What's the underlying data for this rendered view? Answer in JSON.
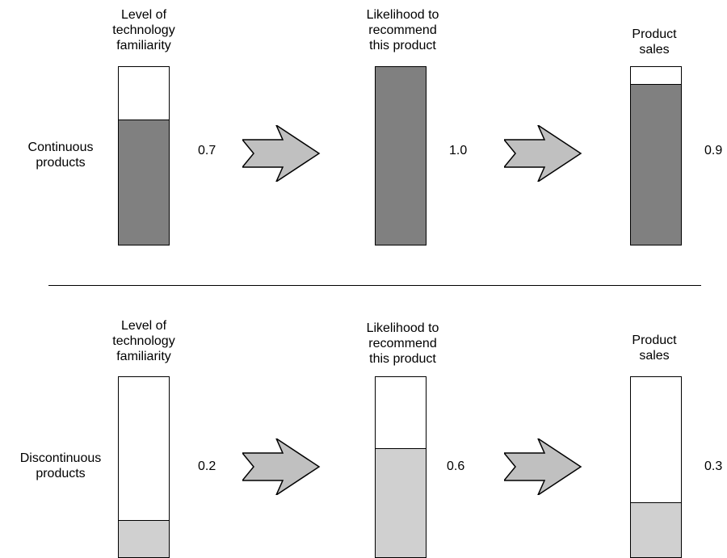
{
  "rows": [
    {
      "label": "Continuous\nproducts",
      "fill_color": "#808080",
      "stages": [
        {
          "title": "Level of\ntechnology\nfamiliarity",
          "value": "0.7",
          "level": 0.7
        },
        {
          "title": "Likelihood to\nrecommend\nthis product",
          "value": "1.0",
          "level": 1.0
        },
        {
          "title": "Product\nsales",
          "value": "0.9",
          "level": 0.9
        }
      ]
    },
    {
      "label": "Discontinuous\nproducts",
      "fill_color": "#d0d0d0",
      "stages": [
        {
          "title": "Level of\ntechnology\nfamiliarity",
          "value": "0.2",
          "level": 0.2
        },
        {
          "title": "Likelihood to\nrecommend\nthis product",
          "value": "0.6",
          "level": 0.6
        },
        {
          "title": "Product\nsales",
          "value": "0.3",
          "level": 0.3
        }
      ]
    }
  ],
  "arrow_color": "#c0c0c0"
}
